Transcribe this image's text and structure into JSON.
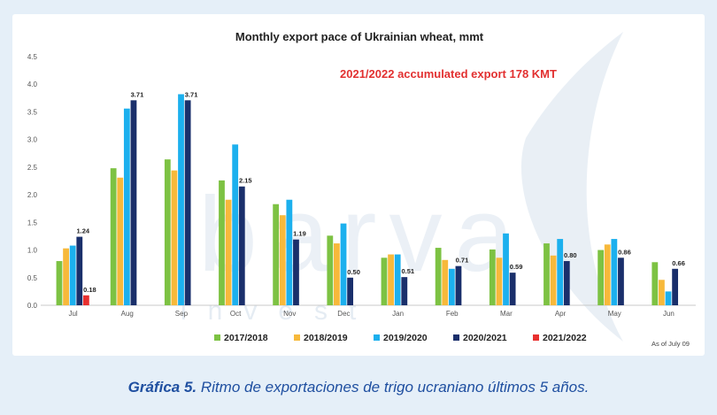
{
  "chart_data": {
    "type": "bar",
    "title": "Monthly export pace of Ukrainian wheat, mmt",
    "annotation": "2021/2022 accumulated export 178 KMT",
    "as_of": "As of  July 09",
    "watermark": {
      "brand": "barva",
      "sub": "invest"
    },
    "ylim": [
      0,
      4.5
    ],
    "yticks": [
      "0.0",
      "0.5",
      "1.0",
      "1.5",
      "2.0",
      "2.5",
      "3.0",
      "3.5",
      "4.0",
      "4.5"
    ],
    "categories": [
      "Jul",
      "Aug",
      "Sep",
      "Oct",
      "Nov",
      "Dec",
      "Jan",
      "Feb",
      "Mar",
      "Apr",
      "May",
      "Jun"
    ],
    "legend_position": "bottom",
    "series": [
      {
        "name": "2017/2018",
        "color": "#7dc243",
        "values": [
          0.8,
          2.48,
          2.64,
          2.26,
          1.83,
          1.26,
          0.86,
          1.04,
          1.01,
          1.12,
          1.0,
          0.78
        ]
      },
      {
        "name": "2018/2019",
        "color": "#f7b93b",
        "values": [
          1.03,
          2.31,
          2.44,
          1.91,
          1.63,
          1.12,
          0.92,
          0.82,
          0.86,
          0.9,
          1.1,
          0.46
        ]
      },
      {
        "name": "2019/2020",
        "color": "#1cb0ee",
        "values": [
          1.08,
          3.56,
          3.82,
          2.91,
          1.91,
          1.48,
          0.92,
          0.66,
          1.3,
          1.2,
          1.2,
          0.25
        ]
      },
      {
        "name": "2020/2021",
        "color": "#1a2f6b",
        "values": [
          1.24,
          3.71,
          3.71,
          2.15,
          1.19,
          0.5,
          0.51,
          0.71,
          0.59,
          0.8,
          0.86,
          0.66
        ]
      },
      {
        "name": "2021/2022",
        "color": "#e8302f",
        "values": [
          0.18,
          null,
          null,
          null,
          null,
          null,
          null,
          null,
          null,
          null,
          null,
          null
        ]
      }
    ],
    "data_labels": [
      {
        "category": "Jul",
        "series": "2020/2021",
        "text": "1.24"
      },
      {
        "category": "Jul",
        "series": "2021/2022",
        "text": "0.18"
      },
      {
        "category": "Aug",
        "series": "2020/2021",
        "text": "3.71"
      },
      {
        "category": "Sep",
        "series": "2020/2021",
        "text": "3.71"
      },
      {
        "category": "Oct",
        "series": "2020/2021",
        "text": "2.15"
      },
      {
        "category": "Nov",
        "series": "2020/2021",
        "text": "1.19"
      },
      {
        "category": "Dec",
        "series": "2020/2021",
        "text": "0.50"
      },
      {
        "category": "Jan",
        "series": "2020/2021",
        "text": "0.51"
      },
      {
        "category": "Feb",
        "series": "2020/2021",
        "text": "0.71"
      },
      {
        "category": "Mar",
        "series": "2020/2021",
        "text": "0.59"
      },
      {
        "category": "Apr",
        "series": "2020/2021",
        "text": "0.80"
      },
      {
        "category": "May",
        "series": "2020/2021",
        "text": "0.86"
      },
      {
        "category": "Jun",
        "series": "2020/2021",
        "text": "0.66"
      }
    ]
  },
  "caption": {
    "label": "Gráfica 5.",
    "text": "Ritmo de exportaciones de trigo ucraniano últimos 5 años."
  },
  "colors": {
    "annotation": "#e23030",
    "background": "#e5eff8",
    "caption": "#1f4fa0"
  }
}
